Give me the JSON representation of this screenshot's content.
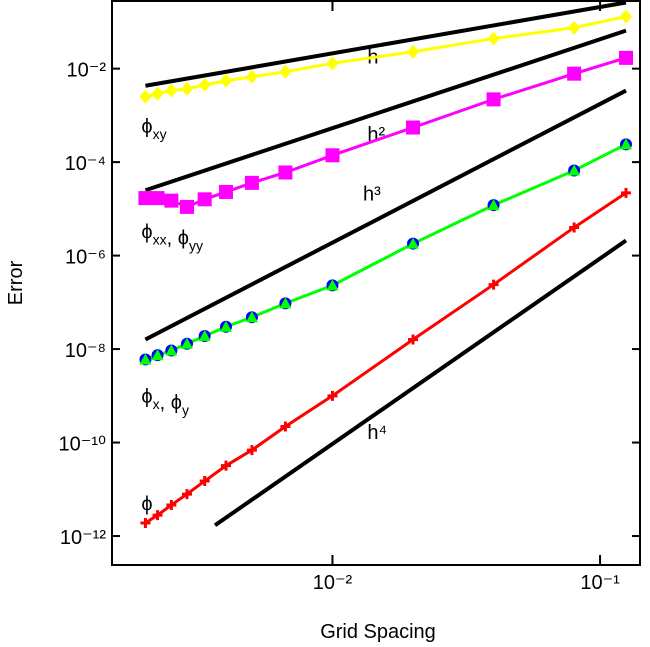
{
  "chart_data": {
    "type": "line",
    "xlabel": "Grid Spacing",
    "ylabel": "Error",
    "xscale": "log",
    "yscale": "log",
    "xlim": [
      0.0015,
      0.141
    ],
    "ylim": [
      2.4e-13,
      0.28
    ],
    "xticks": [
      {
        "value": 0.01,
        "label": "10⁻²"
      },
      {
        "value": 0.1,
        "label": "10⁻¹"
      }
    ],
    "yticks": [
      {
        "value": 1e-12,
        "label": "10⁻¹²"
      },
      {
        "value": 1e-10,
        "label": "10⁻¹⁰"
      },
      {
        "value": 1e-08,
        "label": "10⁻⁸"
      },
      {
        "value": 1e-06,
        "label": "10⁻⁶"
      },
      {
        "value": 0.0001,
        "label": "10⁻⁴"
      },
      {
        "value": 0.01,
        "label": "10⁻²"
      }
    ],
    "x": [
      0.002,
      0.00222,
      0.0025,
      0.00286,
      0.00333,
      0.004,
      0.005,
      0.00667,
      0.01,
      0.02,
      0.04,
      0.08,
      0.125
    ],
    "series": [
      {
        "color": "#ffff00",
        "marker": "diamond",
        "values": [
          0.0025,
          0.0029,
          0.0034,
          0.0037,
          0.0045,
          0.0055,
          0.0067,
          0.0086,
          0.013,
          0.023,
          0.044,
          0.075,
          0.13
        ]
      },
      {
        "color": "#ff00ff",
        "marker": "square",
        "values": [
          1.7e-05,
          1.7e-05,
          1.5e-05,
          1.1e-05,
          1.6e-05,
          2.3e-05,
          3.6e-05,
          6e-05,
          0.00014,
          0.00055,
          0.0022,
          0.0078,
          0.017
        ]
      },
      {
        "color": "#00ff00",
        "marker": "circle-triangle",
        "marker_color": "#0000ff",
        "values": [
          6e-09,
          7.4e-09,
          9.3e-09,
          1.3e-08,
          1.9e-08,
          3e-08,
          4.8e-08,
          9.5e-08,
          2.3e-07,
          1.8e-06,
          1.2e-05,
          6.6e-05,
          0.00024
        ]
      },
      {
        "color": "#ff0000",
        "marker": "plus",
        "values": [
          1.9e-12,
          2.8e-12,
          4.6e-12,
          7.9e-12,
          1.5e-11,
          3.2e-11,
          6.9e-11,
          2.2e-10,
          1e-09,
          1.6e-08,
          2.4e-07,
          4e-06,
          2.2e-05
        ]
      }
    ],
    "reference_lines": [
      {
        "label": "h",
        "label_at": [
          0.0135,
          0.013
        ],
        "x": [
          0.002,
          0.125
        ],
        "y": [
          0.0043,
          0.26
        ]
      },
      {
        "label": "h²",
        "label_at": [
          0.0135,
          0.00028
        ],
        "x": [
          0.002,
          0.125
        ],
        "y": [
          2.5e-05,
          0.065
        ]
      },
      {
        "label": "h³",
        "label_at": [
          0.013,
          1.5e-05
        ],
        "x": [
          0.002,
          0.125
        ],
        "y": [
          1.6e-08,
          0.0034
        ]
      },
      {
        "label": "h⁴",
        "label_at": [
          0.0135,
          1.2e-10
        ],
        "x": [
          0.00364,
          0.125
        ],
        "y": [
          1.7e-12,
          2.1e-06
        ]
      }
    ],
    "annotations": [
      {
        "at": [
          0.002,
          0.00042
        ],
        "parts": [
          {
            "t": "ϕ",
            "sub": "xy"
          }
        ]
      },
      {
        "at": [
          0.002,
          2.3e-06
        ],
        "parts": [
          {
            "t": "ϕ",
            "sub": "xx"
          },
          {
            "t": ", ϕ",
            "sub": "yy"
          }
        ]
      },
      {
        "at": [
          0.002,
          7e-10
        ],
        "parts": [
          {
            "t": "ϕ",
            "sub": "x"
          },
          {
            "t": ", ϕ",
            "sub": "y"
          }
        ]
      },
      {
        "at": [
          0.002,
          3.5e-12
        ],
        "parts": [
          {
            "t": "ϕ"
          }
        ]
      }
    ]
  }
}
